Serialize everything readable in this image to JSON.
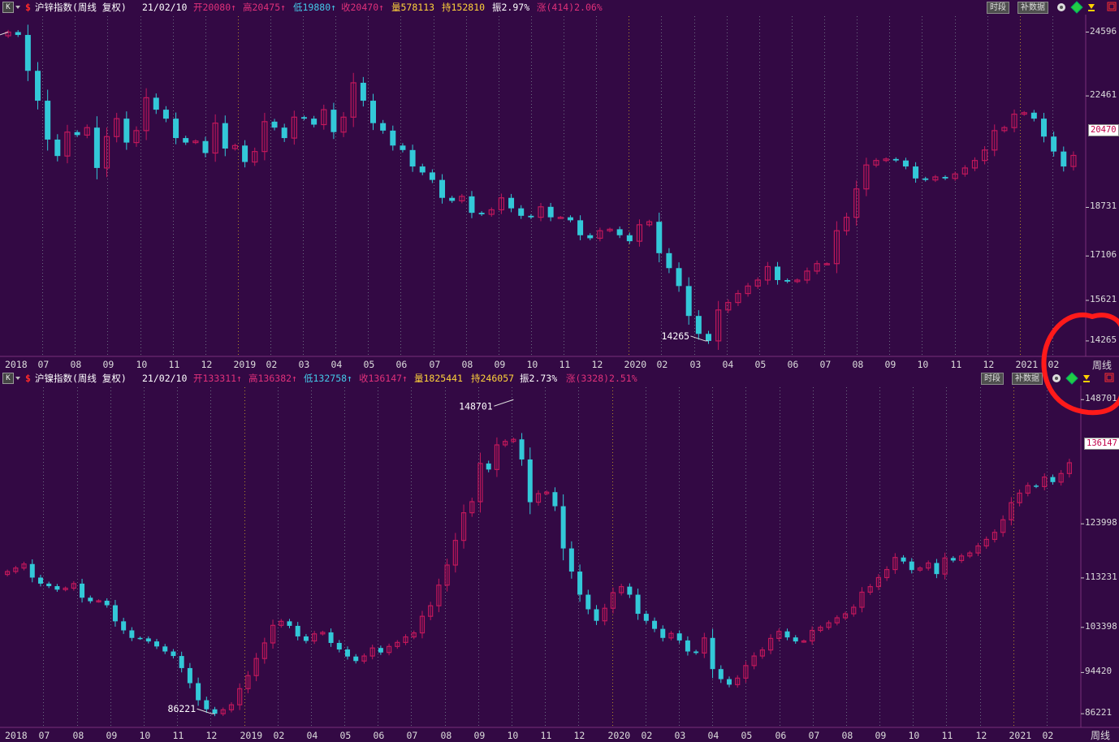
{
  "colors": {
    "background": "#330944",
    "up": "#c2185b",
    "down": "#33c8d8",
    "grid_month": "#6a6a80",
    "grid_year": "#b08a2a",
    "axis_line": "#7a2f7a",
    "annotation": "#ff1a1a"
  },
  "panels": [
    {
      "header": {
        "name": "沪锌指数(周线 复权)",
        "date": "21/02/10",
        "open": "开20080↑",
        "high": "高20475↑",
        "low": "低19880↑",
        "close": "收20470↑",
        "volume": "量578113",
        "hold": "持152810",
        "amplitude": "振2.97%",
        "change": "涨(414)2.06%"
      },
      "buttons": {
        "period": "时段",
        "supplement": "补数据"
      },
      "price_labels": [
        "24596",
        "22461",
        "18731",
        "17106",
        "15621",
        "14265"
      ],
      "current_price_badge": "20470",
      "period_label": "周线",
      "x_labels": [
        "2018",
        "07",
        "08",
        "09",
        "10",
        "11",
        "12",
        "2019",
        "02",
        "03",
        "04",
        "05",
        "06",
        "07",
        "08",
        "09",
        "10",
        "11",
        "12",
        "2020",
        "02",
        "03",
        "04",
        "05",
        "06",
        "07",
        "08",
        "09",
        "10",
        "11",
        "12",
        "2021",
        "02"
      ],
      "extreme_labels": {
        "high": "24596",
        "low": "14265"
      }
    },
    {
      "header": {
        "name": "沪镍指数(周线 复权)",
        "date": "21/02/10",
        "open": "开133311↑",
        "high": "高136382↑",
        "low": "低132758↑",
        "close": "收136147↑",
        "volume": "量1825441",
        "hold": "持246057",
        "amplitude": "振2.73%",
        "change": "涨(3328)2.51%"
      },
      "buttons": {
        "period": "时段",
        "supplement": "补数据"
      },
      "price_labels": [
        "148701",
        "123998",
        "113231",
        "103398",
        "94420",
        "86221"
      ],
      "current_price_badge": "136147",
      "period_label": "周线",
      "x_labels": [
        "2018",
        "07",
        "08",
        "09",
        "10",
        "11",
        "12",
        "2019",
        "02",
        "04",
        "05",
        "06",
        "07",
        "08",
        "09",
        "10",
        "11",
        "12",
        "2020",
        "02",
        "03",
        "04",
        "05",
        "06",
        "07",
        "08",
        "09",
        "10",
        "11",
        "12",
        "2021",
        "02"
      ],
      "extreme_labels": {
        "high": "148701",
        "low": "86221"
      }
    }
  ],
  "chart_data": [
    {
      "type": "candlestick",
      "title": "沪锌指数(周线 复权)",
      "ylim": [
        14100,
        24800
      ],
      "y_ticks": [
        24596,
        22461,
        18731,
        17106,
        15621,
        14265
      ],
      "x_labels": [
        "2018",
        "07",
        "08",
        "09",
        "10",
        "11",
        "12",
        "2019",
        "02",
        "03",
        "04",
        "05",
        "06",
        "07",
        "08",
        "09",
        "10",
        "11",
        "12",
        "2020",
        "02",
        "03",
        "04",
        "05",
        "06",
        "07",
        "08",
        "09",
        "10",
        "11",
        "12",
        "2021",
        "02"
      ],
      "closes": [
        24596,
        24500,
        23300,
        22300,
        21000,
        20450,
        21250,
        21150,
        21400,
        20050,
        21100,
        21700,
        20900,
        21300,
        22400,
        22000,
        21700,
        21050,
        20900,
        20950,
        20550,
        21550,
        20700,
        20800,
        20250,
        20600,
        21600,
        21400,
        21050,
        21750,
        21700,
        21500,
        22000,
        21250,
        21750,
        22900,
        22300,
        21550,
        21300,
        20800,
        20650,
        20100,
        19900,
        19650,
        19050,
        18950,
        19100,
        18550,
        18500,
        18650,
        19050,
        18700,
        18450,
        18400,
        18750,
        18400,
        18400,
        18300,
        17800,
        17700,
        17950,
        18000,
        17800,
        17600,
        18150,
        18250,
        17200,
        16700,
        16100,
        15100,
        14500,
        14265,
        15300,
        15550,
        15850,
        16100,
        16300,
        16750,
        16300,
        16250,
        16300,
        16600,
        16850,
        16850,
        17950,
        18400,
        19350,
        20150,
        20300,
        20350,
        20300,
        20100,
        19700,
        19650,
        19750,
        19700,
        19850,
        20050,
        20300,
        20650,
        21300,
        21400,
        21850,
        21900,
        21700,
        21100,
        20600,
        20100,
        20470
      ],
      "current": 20470,
      "extremes": {
        "high": 24596,
        "low": 14265
      },
      "period": "周线"
    },
    {
      "type": "candlestick",
      "title": "沪镍指数(周线 复权)",
      "ylim": [
        85600,
        150200
      ],
      "y_ticks": [
        148701,
        123998,
        113231,
        103398,
        94420,
        86221
      ],
      "x_labels": [
        "2018",
        "07",
        "08",
        "09",
        "10",
        "11",
        "12",
        "2019",
        "02",
        "04",
        "05",
        "06",
        "07",
        "08",
        "09",
        "10",
        "11",
        "12",
        "2020",
        "02",
        "03",
        "04",
        "05",
        "06",
        "07",
        "08",
        "09",
        "10",
        "11",
        "12",
        "2021",
        "02"
      ],
      "closes": [
        114500,
        115200,
        116000,
        113300,
        112100,
        111600,
        110900,
        111200,
        112100,
        109300,
        108600,
        108700,
        107800,
        104600,
        102800,
        101300,
        101200,
        100600,
        99600,
        98600,
        97700,
        95300,
        92300,
        88900,
        87100,
        86221,
        87000,
        88000,
        91200,
        93800,
        97200,
        100300,
        103800,
        104600,
        103700,
        101600,
        100700,
        102100,
        102400,
        100300,
        99000,
        97600,
        96700,
        97700,
        99300,
        98400,
        99600,
        100400,
        101500,
        102300,
        105600,
        107700,
        111800,
        115800,
        120700,
        126200,
        128400,
        136000,
        134800,
        139700,
        140400,
        140800,
        136800,
        128300,
        130000,
        130300,
        127500,
        119100,
        114500,
        109900,
        107000,
        104700,
        107200,
        110300,
        111500,
        109900,
        106100,
        104700,
        103100,
        101300,
        102200,
        100800,
        98600,
        98300,
        101300,
        95100,
        93100,
        92000,
        93300,
        95800,
        97700,
        98900,
        101200,
        102600,
        101400,
        100600,
        100700,
        102800,
        103400,
        104300,
        105300,
        106100,
        107400,
        110400,
        111500,
        113300,
        114900,
        117300,
        116500,
        114800,
        115200,
        116200,
        114000,
        117200,
        116700,
        117600,
        118200,
        119600,
        120900,
        122300,
        124800,
        128200,
        130100,
        131600,
        131400,
        133300,
        132300,
        134000,
        136147
      ],
      "current": 136147,
      "extremes": {
        "high": 148701,
        "low": 86221
      },
      "period": "周线"
    }
  ]
}
